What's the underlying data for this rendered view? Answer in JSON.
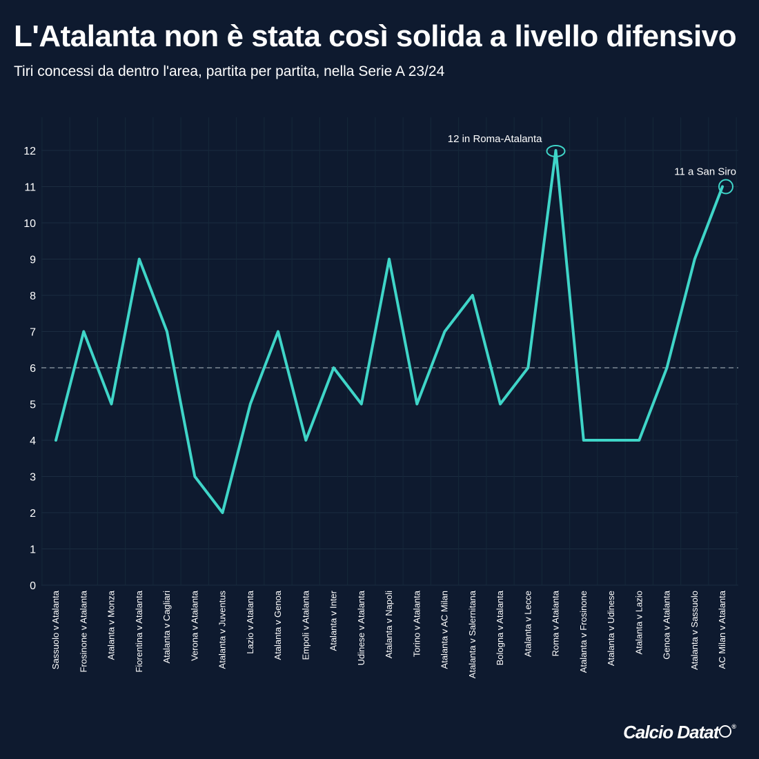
{
  "header": {
    "title": "L'Atalanta non è stata così solida a livello difensivo",
    "subtitle": "Tiri concessi da dentro l'area, partita per partita, nella Serie A 23/24"
  },
  "chart_data": {
    "type": "line",
    "title": "L'Atalanta non è stata così solida a livello difensivo",
    "subtitle": "Tiri concessi da dentro l'area, partita per partita, nella Serie A 23/24",
    "xlabel": "",
    "ylabel": "",
    "categories": [
      "Sassuolo v Atalanta",
      "Frosinone v Atalanta",
      "Atalanta v Monza",
      "Fiorentina v Atalanta",
      "Atalanta v Cagliari",
      "Verona v Atalanta",
      "Atalanta v Juventus",
      "Lazio v Atalanta",
      "Atalanta v Genoa",
      "Empoli v Atalanta",
      "Atalanta v Inter",
      "Udinese v Atalanta",
      "Atalanta v Napoli",
      "Torino v Atalanta",
      "Atalanta v AC Milan",
      "Atalanta v Salernitana",
      "Bologna v Atalanta",
      "Atalanta v Lecce",
      "Roma v Atalanta",
      "Atalanta v Frosinone",
      "Atalanta v Udinese",
      "Atalanta v Lazio",
      "Genoa v Atalanta",
      "Atalanta v Sassuolo",
      "AC Milan v Atalanta"
    ],
    "values": [
      4,
      7,
      5,
      9,
      7,
      3,
      2,
      5,
      7,
      4,
      6,
      5,
      9,
      5,
      7,
      8,
      5,
      6,
      12,
      4,
      4,
      4,
      6,
      9,
      11
    ],
    "yticks": [
      0,
      1,
      2,
      3,
      4,
      5,
      6,
      7,
      8,
      9,
      10,
      11,
      12
    ],
    "ylim": [
      0,
      12
    ],
    "reference_line": {
      "value": 6,
      "style": "dashed"
    },
    "annotations": [
      {
        "text": "12 in Roma-Atalanta",
        "category": "Roma v Atalanta",
        "value": 12
      },
      {
        "text": "11 a San Siro",
        "category": "AC Milan v Atalanta",
        "value": 11
      }
    ],
    "grid": true,
    "line_color": "#3fd5c8",
    "background_color": "#0e1a2f"
  },
  "footer": {
    "brand": "Calcio Datat",
    "registered": "®"
  }
}
